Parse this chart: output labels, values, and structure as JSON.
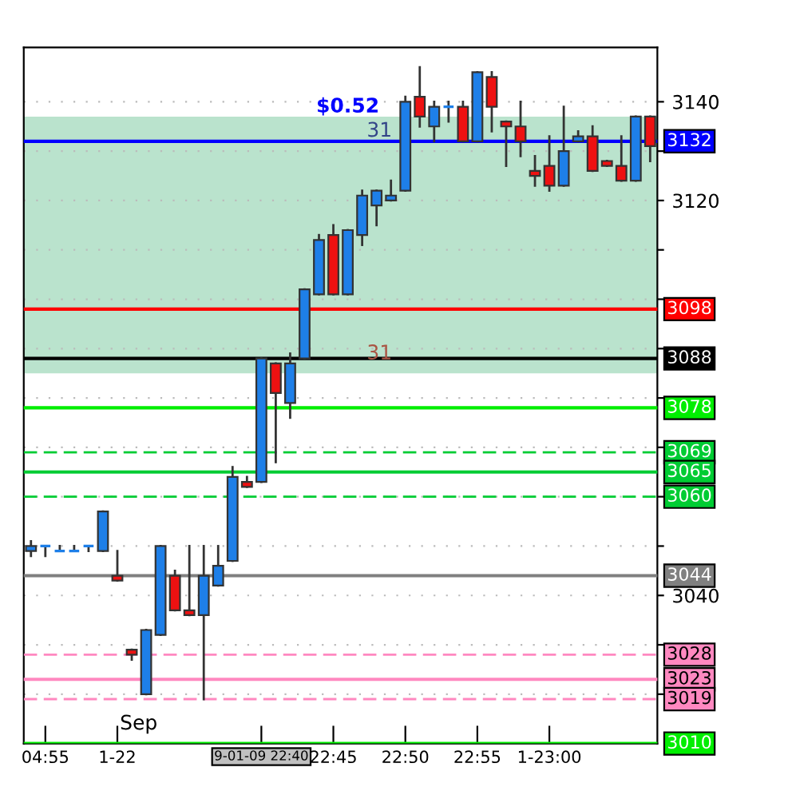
{
  "chart_data": {
    "type": "candlestick",
    "categories": [
      null,
      "04:55",
      null,
      null,
      null,
      null,
      "1-22",
      null,
      null,
      null,
      null,
      null,
      null,
      null,
      null,
      null,
      "9-01-09 22:40",
      null,
      null,
      null,
      null,
      "22:45",
      null,
      null,
      null,
      null,
      "22:50",
      null,
      null,
      null,
      null,
      "22:55",
      null,
      null,
      null,
      null,
      "1-23:00",
      null,
      null,
      null,
      null,
      null,
      null,
      null
    ],
    "ohlc": [
      [
        3049,
        3051,
        3048,
        3050
      ],
      [
        3050,
        3050,
        3048,
        3050
      ],
      [
        3049,
        3050,
        3049,
        3049
      ],
      [
        3049,
        3050,
        3049,
        3049
      ],
      [
        3050,
        3050,
        3049,
        3050
      ],
      [
        3049,
        3057,
        3049,
        3057
      ],
      [
        3044,
        3049,
        3043,
        3043
      ],
      [
        3029,
        3029,
        3027,
        3028
      ],
      [
        3020,
        3033,
        3020,
        3033
      ],
      [
        3032,
        3050,
        3032,
        3050
      ],
      [
        3044,
        3045,
        3037,
        3037
      ],
      [
        3037,
        3050,
        3036,
        3036
      ],
      [
        3036,
        3050,
        3019,
        3044
      ],
      [
        3042,
        3050,
        3042,
        3046
      ],
      [
        3047,
        3066,
        3047,
        3064
      ],
      [
        3063,
        3064,
        3062,
        3062
      ],
      [
        3063,
        3088,
        3063,
        3088
      ],
      [
        3087,
        3087,
        3067,
        3081
      ],
      [
        3079,
        3089,
        3076,
        3087
      ],
      [
        3088,
        3102,
        3088,
        3102
      ],
      [
        3101,
        3113,
        3101,
        3112
      ],
      [
        3113,
        3115,
        3101,
        3101
      ],
      [
        3101,
        3114,
        3101,
        3114
      ],
      [
        3113,
        3122,
        3111,
        3121
      ],
      [
        3119,
        3122,
        3115,
        3122
      ],
      [
        3120,
        3124,
        3120,
        3121
      ],
      [
        3122,
        3141,
        3122,
        3140
      ],
      [
        3141,
        3147,
        3135,
        3137
      ],
      [
        3135,
        3140,
        3132,
        3139
      ],
      [
        3139,
        3140,
        3136,
        3139
      ],
      [
        3139,
        3140,
        3132,
        3132
      ],
      [
        3132,
        3146,
        3132,
        3146
      ],
      [
        3145,
        3146,
        3134,
        3139
      ],
      [
        3136,
        3136,
        3127,
        3135
      ],
      [
        3135,
        3140,
        3129,
        3132
      ],
      [
        3126,
        3129,
        3123,
        3125
      ],
      [
        3127,
        3133,
        3122,
        3123
      ],
      [
        3123,
        3139,
        3123,
        3130
      ],
      [
        3132,
        3134,
        3132,
        3133
      ],
      [
        3133,
        3135,
        3126,
        3126
      ],
      [
        3128,
        3128,
        3127,
        3127
      ],
      [
        3127,
        3133,
        3124,
        3124
      ],
      [
        3124,
        3137,
        3124,
        3137
      ],
      [
        3137,
        3137,
        3128,
        3131
      ]
    ],
    "colors": [
      "#1e7fe8",
      "#1e7fe8",
      "#1e7fe8",
      "#1e7fe8",
      "#1e7fe8",
      "#1e7fe8",
      "#ee1111",
      "#ee1111",
      "#1e7fe8",
      "#1e7fe8",
      "#ee1111",
      "#ee1111",
      "#1e7fe8",
      "#1e7fe8",
      "#1e7fe8",
      "#ee1111",
      "#1e7fe8",
      "#ee1111",
      "#1e7fe8",
      "#1e7fe8",
      "#1e7fe8",
      "#ee1111",
      "#1e7fe8",
      "#1e7fe8",
      "#1e7fe8",
      "#1e7fe8",
      "#1e7fe8",
      "#ee1111",
      "#1e7fe8",
      "#1e7fe8",
      "#ee1111",
      "#1e7fe8",
      "#ee1111",
      "#ee1111",
      "#ee1111",
      "#ee1111",
      "#ee1111",
      "#1e7fe8",
      "#1e7fe8",
      "#ee1111",
      "#ee1111",
      "#ee1111",
      "#1e7fe8",
      "#ee1111"
    ],
    "ylim": [
      3010,
      3151
    ],
    "yticks": [
      3140,
      {
        "value": 3130,
        "label": null
      },
      3120,
      {
        "value": 3110,
        "label": null
      },
      {
        "value": 3100,
        "label": null
      },
      {
        "value": 3090,
        "label": null
      },
      {
        "value": 3080,
        "label": null
      },
      {
        "value": 3070,
        "label": null
      },
      {
        "value": 3060,
        "label": null
      },
      {
        "value": 3050,
        "label": null
      },
      3040,
      {
        "value": 3030,
        "label": null
      },
      {
        "value": 3020,
        "label": null
      }
    ],
    "grid": "y",
    "ref_lines": [
      {
        "axis": "y",
        "value": 3132,
        "label": "3132",
        "color": "#0000ff",
        "line_style": "solid"
      },
      {
        "axis": "y",
        "value": 3098,
        "label": "3098",
        "color": "#ff0000",
        "line_style": "solid"
      },
      {
        "axis": "y",
        "value": 3088,
        "label": "3088",
        "color": "#000000",
        "line_style": "solid"
      },
      {
        "axis": "y",
        "value": 3078,
        "label": "3078",
        "color": "#00ee00",
        "line_style": "solid"
      },
      {
        "axis": "y",
        "value": 3069,
        "label": "3069",
        "color": "#00cc33",
        "line_style": "dashed"
      },
      {
        "axis": "y",
        "value": 3065,
        "label": "3065",
        "color": "#00cc33",
        "line_style": "solid"
      },
      {
        "axis": "y",
        "value": 3060,
        "label": "3060",
        "color": "#00cc33",
        "line_style": "dashed"
      },
      {
        "axis": "y",
        "value": 3044,
        "label": "3044",
        "color": "#808080",
        "line_style": "solid"
      },
      {
        "axis": "y",
        "value": 3028,
        "label": "3028",
        "color": "#ff88c0",
        "line_style": "dashed"
      },
      {
        "axis": "y",
        "value": 3023,
        "label": "3023",
        "color": "#ff88c0",
        "line_style": "solid"
      },
      {
        "axis": "y",
        "value": 3019,
        "label": "3019",
        "color": "#ff88c0",
        "line_style": "dashed"
      },
      {
        "axis": "y",
        "value": 3010,
        "label": "3010",
        "color": "#00ee00",
        "line_style": "solid"
      }
    ],
    "bands": [
      {
        "axis": "y",
        "from": 3085,
        "to": 3137,
        "label": "$0.52",
        "color": "#b3e0c8"
      }
    ],
    "annotations": [
      "31",
      "31",
      "Sep"
    ]
  }
}
